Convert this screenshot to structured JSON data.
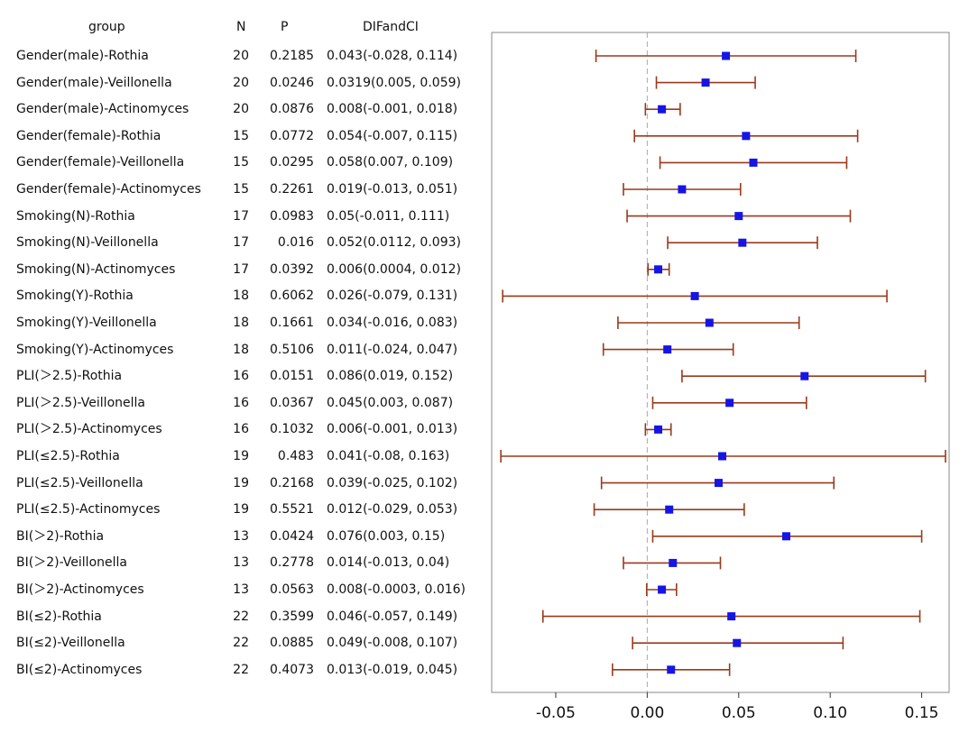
{
  "headers": {
    "group": "group",
    "n": "N",
    "p": "P",
    "ci": "DIFandCI"
  },
  "rows": [
    {
      "group": "Gender(male)-Rothia",
      "n": "20",
      "p": "0.2185",
      "ci": "0.043(-0.028, 0.114)"
    },
    {
      "group": "Gender(male)-Veillonella",
      "n": "20",
      "p": "0.0246",
      "ci": "0.0319(0.005, 0.059)"
    },
    {
      "group": "Gender(male)-Actinomyces",
      "n": "20",
      "p": "0.0876",
      "ci": "0.008(-0.001, 0.018)"
    },
    {
      "group": "Gender(female)-Rothia",
      "n": "15",
      "p": "0.0772",
      "ci": "0.054(-0.007, 0.115)"
    },
    {
      "group": "Gender(female)-Veillonella",
      "n": "15",
      "p": "0.0295",
      "ci": "0.058(0.007, 0.109)"
    },
    {
      "group": "Gender(female)-Actinomyces",
      "n": "15",
      "p": "0.2261",
      "ci": "0.019(-0.013, 0.051)"
    },
    {
      "group": "Smoking(N)-Rothia",
      "n": "17",
      "p": "0.0983",
      "ci": "0.05(-0.011, 0.111)"
    },
    {
      "group": "Smoking(N)-Veillonella",
      "n": "17",
      "p": "0.016",
      "ci": "0.052(0.0112, 0.093)"
    },
    {
      "group": "Smoking(N)-Actinomyces",
      "n": "17",
      "p": "0.0392",
      "ci": "0.006(0.0004, 0.012)"
    },
    {
      "group": "Smoking(Y)-Rothia",
      "n": "18",
      "p": "0.6062",
      "ci": "0.026(-0.079, 0.131)"
    },
    {
      "group": "Smoking(Y)-Veillonella",
      "n": "18",
      "p": "0.1661",
      "ci": "0.034(-0.016, 0.083)"
    },
    {
      "group": "Smoking(Y)-Actinomyces",
      "n": "18",
      "p": "0.5106",
      "ci": "0.011(-0.024, 0.047)"
    },
    {
      "group": "PLI(＞2.5)-Rothia",
      "n": "16",
      "p": "0.0151",
      "ci": "0.086(0.019, 0.152)"
    },
    {
      "group": "PLI(＞2.5)-Veillonella",
      "n": "16",
      "p": "0.0367",
      "ci": "0.045(0.003, 0.087)"
    },
    {
      "group": "PLI(＞2.5)-Actinomyces",
      "n": "16",
      "p": "0.1032",
      "ci": "0.006(-0.001, 0.013)"
    },
    {
      "group": "PLI(≤2.5)-Rothia",
      "n": "19",
      "p": "0.483",
      "ci": "0.041(-0.08, 0.163)"
    },
    {
      "group": "PLI(≤2.5)-Veillonella",
      "n": "19",
      "p": "0.2168",
      "ci": "0.039(-0.025, 0.102)"
    },
    {
      "group": "PLI(≤2.5)-Actinomyces",
      "n": "19",
      "p": "0.5521",
      "ci": "0.012(-0.029, 0.053)"
    },
    {
      "group": "BI(＞2)-Rothia",
      "n": "13",
      "p": "0.0424",
      "ci": "0.076(0.003, 0.15)"
    },
    {
      "group": "BI(＞2)-Veillonella",
      "n": "13",
      "p": "0.2778",
      "ci": "0.014(-0.013, 0.04)"
    },
    {
      "group": "BI(＞2)-Actinomyces",
      "n": "13",
      "p": "0.0563",
      "ci": "0.008(-0.0003, 0.016)"
    },
    {
      "group": "BI(≤2)-Rothia",
      "n": "22",
      "p": "0.3599",
      "ci": "0.046(-0.057, 0.149)"
    },
    {
      "group": "BI(≤2)-Veillonella",
      "n": "22",
      "p": "0.0885",
      "ci": "0.049(-0.008, 0.107)"
    },
    {
      "group": "BI(≤2)-Actinomyces",
      "n": "22",
      "p": "0.4073",
      "ci": "0.013(-0.019, 0.045)"
    }
  ],
  "chart_data": {
    "type": "forest",
    "title": "",
    "xlabel": "",
    "ylabel": "",
    "xlim": [
      -0.085,
      0.165
    ],
    "reference_line": 0.0,
    "xticks": [
      -0.05,
      0.0,
      0.05,
      0.1,
      0.15
    ],
    "xtick_labels": [
      "-0.05",
      "0.00",
      "0.05",
      "0.10",
      "0.15"
    ],
    "categories": [
      "Gender(male)-Rothia",
      "Gender(male)-Veillonella",
      "Gender(male)-Actinomyces",
      "Gender(female)-Rothia",
      "Gender(female)-Veillonella",
      "Gender(female)-Actinomyces",
      "Smoking(N)-Rothia",
      "Smoking(N)-Veillonella",
      "Smoking(N)-Actinomyces",
      "Smoking(Y)-Rothia",
      "Smoking(Y)-Veillonella",
      "Smoking(Y)-Actinomyces",
      "PLI(＞2.5)-Rothia",
      "PLI(＞2.5)-Veillonella",
      "PLI(＞2.5)-Actinomyces",
      "PLI(≤2.5)-Rothia",
      "PLI(≤2.5)-Veillonella",
      "PLI(≤2.5)-Actinomyces",
      "BI(＞2)-Rothia",
      "BI(＞2)-Veillonella",
      "BI(＞2)-Actinomyces",
      "BI(≤2)-Rothia",
      "BI(≤2)-Veillonella",
      "BI(≤2)-Actinomyces"
    ],
    "estimates": [
      0.043,
      0.0319,
      0.008,
      0.054,
      0.058,
      0.019,
      0.05,
      0.052,
      0.006,
      0.026,
      0.034,
      0.011,
      0.086,
      0.045,
      0.006,
      0.041,
      0.039,
      0.012,
      0.076,
      0.014,
      0.008,
      0.046,
      0.049,
      0.013
    ],
    "lower": [
      -0.028,
      0.005,
      -0.001,
      -0.007,
      0.007,
      -0.013,
      -0.011,
      0.0112,
      0.0004,
      -0.079,
      -0.016,
      -0.024,
      0.019,
      0.003,
      -0.001,
      -0.08,
      -0.025,
      -0.029,
      0.003,
      -0.013,
      -0.0003,
      -0.057,
      -0.008,
      -0.019
    ],
    "upper": [
      0.114,
      0.059,
      0.018,
      0.115,
      0.109,
      0.051,
      0.111,
      0.093,
      0.012,
      0.131,
      0.083,
      0.047,
      0.152,
      0.087,
      0.013,
      0.163,
      0.102,
      0.053,
      0.15,
      0.04,
      0.016,
      0.149,
      0.107,
      0.045
    ],
    "colors": {
      "point": "#1515e6",
      "interval": "#9a3a1a",
      "reference": "#aaaaaa",
      "frame": "#888888"
    }
  }
}
